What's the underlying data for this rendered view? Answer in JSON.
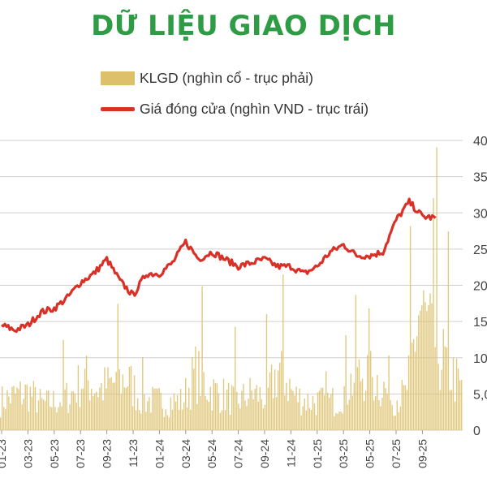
{
  "page": {
    "title": "DỮ LIỆU GIAO DỊCH",
    "title_color": "#2e9b45"
  },
  "chart_data": {
    "type": "bar+line",
    "title": "DỮ LIỆU GIAO DỊCH",
    "legend": [
      {
        "label": "KLGD (nghìn cổ - trục phải)",
        "color": "#dcc06a",
        "kind": "bar"
      },
      {
        "label": "Giá đóng cửa (nghìn VND - trục trái)",
        "color": "#d93127",
        "kind": "line"
      }
    ],
    "grid": true,
    "legend_position": "top",
    "y_ticks": [
      "40",
      "35",
      "30",
      "25",
      "20",
      "15",
      "10",
      "5,0",
      "0"
    ],
    "y_range": [
      0,
      40
    ],
    "x_ticks": [
      "01-23",
      "03-23",
      "05-23",
      "07-23",
      "09-23",
      "11-23",
      "01-24",
      "03-24",
      "05-24",
      "07-24",
      "09-24",
      "11-24",
      "01-25",
      "03-25",
      "05-25",
      "07-25",
      "09-25"
    ],
    "series": [
      {
        "name": "Giá đóng cửa (nghìn VND - trục trái)",
        "type": "line",
        "x": [
          "01-23",
          "02-23",
          "03-23",
          "04-23",
          "05-23",
          "06-23",
          "07-23",
          "08-23",
          "09-23",
          "10-23",
          "11-23",
          "12-23",
          "01-24",
          "02-24",
          "03-24",
          "04-24",
          "05-24",
          "06-24",
          "07-24",
          "08-24",
          "09-24",
          "10-24",
          "11-24",
          "12-24",
          "01-25",
          "02-25",
          "03-25",
          "04-25",
          "05-25",
          "06-25",
          "07-25",
          "08-25",
          "09-25",
          "10-25"
        ],
        "values": [
          14.5,
          13.8,
          14.5,
          16.3,
          16.8,
          18.3,
          20.4,
          21.6,
          23.6,
          20.6,
          18.6,
          21.6,
          21.6,
          23.1,
          26.0,
          23.6,
          24.6,
          23.6,
          22.6,
          23.1,
          23.6,
          22.6,
          22.6,
          21.6,
          22.6,
          24.6,
          25.6,
          24.1,
          24.1,
          24.6,
          29.0,
          31.5,
          29.5,
          29.3
        ]
      },
      {
        "name": "KLGD (nghìn cổ - trục phải)",
        "type": "bar",
        "x": [
          "01-23",
          "02-23",
          "03-23",
          "04-23",
          "05-23",
          "06-23",
          "07-23",
          "08-23",
          "09-23",
          "10-23",
          "11-23",
          "12-23",
          "01-24",
          "02-24",
          "03-24",
          "04-24",
          "05-24",
          "06-24",
          "07-24",
          "08-24",
          "09-24",
          "10-24",
          "11-24",
          "12-24",
          "01-25",
          "02-25",
          "03-25",
          "04-25",
          "05-25",
          "06-25",
          "07-25",
          "08-25",
          "09-25",
          "10-25"
        ],
        "values": [
          5.0,
          6.0,
          6.5,
          4.5,
          5.0,
          6.0,
          9.0,
          7.0,
          8.0,
          9.0,
          5.5,
          5.0,
          5.0,
          5.0,
          10.0,
          7.0,
          6.0,
          5.0,
          6.5,
          5.5,
          11.0,
          6.0,
          5.0,
          5.0,
          5.0,
          8.0,
          10.0,
          8.5,
          5.5,
          6.0,
          21.0,
          15.0,
          11.0,
          7.0
        ]
      }
    ]
  }
}
